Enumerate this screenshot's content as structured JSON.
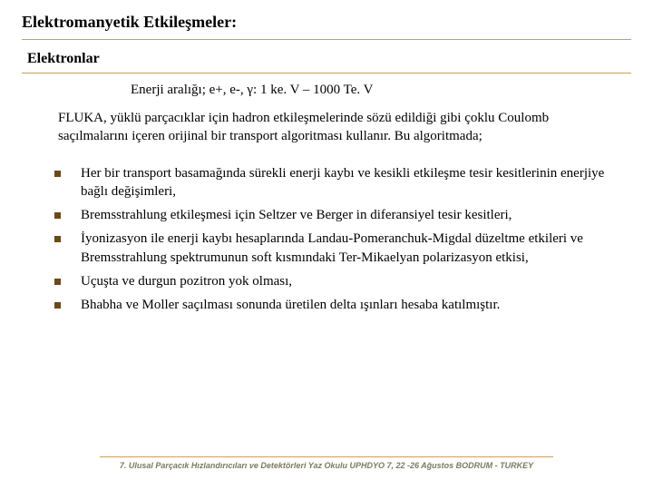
{
  "title_main": "Elektromanyetik Etkileşmeler:",
  "title_sub": "Elektronlar",
  "energy_line": "Enerji aralığı; e+, e-, γ: 1 ke. V – 1000 Te. V",
  "intro": "FLUKA, yüklü parçacıklar için hadron etkileşmelerinde sözü edildiği gibi çoklu Coulomb saçılmalarını içeren orijinal bir transport algoritması kullanır. Bu algoritmada;",
  "bullets": [
    "Her bir transport basamağında sürekli enerji kaybı ve kesikli etkileşme tesir kesitlerinin enerjiye bağlı değişimleri,",
    "Bremsstrahlung etkileşmesi için Seltzer ve Berger in diferansiyel tesir kesitleri,",
    "İyonizasyon ile enerji kaybı hesaplarında Landau-Pomeranchuk-Migdal düzeltme etkileri ve Bremsstrahlung spektrumunun soft kısmındaki Ter-Mikaelyan polarizasyon etkisi,",
    "Uçuşta ve durgun pozitron yok olması,",
    "Bhabha ve Moller saçılması sonunda üretilen delta ışınları hesaba katılmıştır."
  ],
  "footer": "7. Ulusal Parçacık Hızlandırıcıları ve Detektörleri Yaz Okulu UPHDYO 7, 22 -26 Ağustos BODRUM - TURKEY",
  "colors": {
    "rule": "#c9a05a",
    "bullet": "#6a4a1a",
    "footer_text": "#7a7a62",
    "background": "#ffffff"
  },
  "fonts": {
    "body_family": "Times New Roman",
    "body_size_pt": 12,
    "title_size_pt": 14,
    "footer_family": "Verdana",
    "footer_size_pt": 7
  }
}
